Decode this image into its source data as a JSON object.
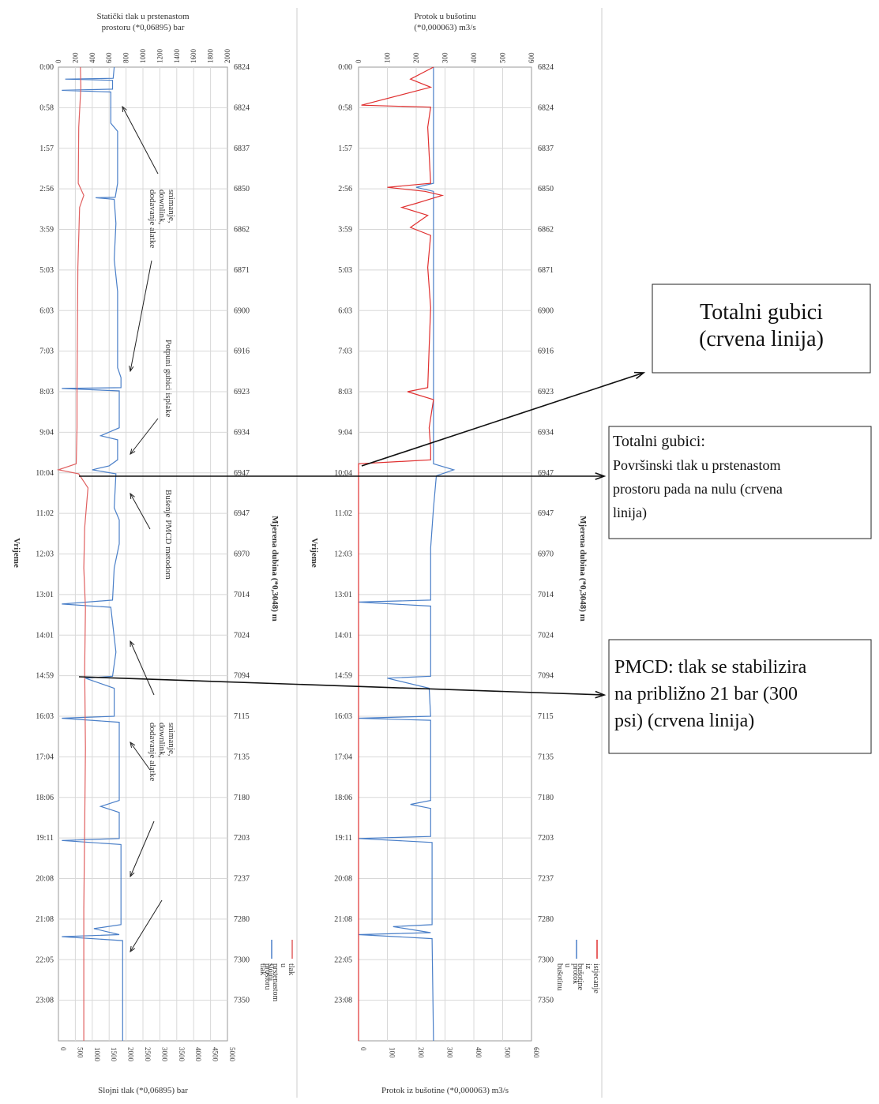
{
  "chart_data": [
    {
      "type": "line",
      "top_axis_title_lines": [
        "Statički tlak u prstenastom",
        "prostoru (*0,06895) bar"
      ],
      "top_ticks": [
        "0",
        "200",
        "400",
        "600",
        "800",
        "1000",
        "1200",
        "1400",
        "1600",
        "1800",
        "2000"
      ],
      "bottom_axis_title": "Slojni tlak (*0,06895) bar",
      "bottom_ticks": [
        "0",
        "500",
        "1000",
        "1500",
        "2000",
        "2500",
        "3000",
        "3500",
        "4000",
        "4500",
        "5000"
      ],
      "left_axis_title": "Vrijeme",
      "time_labels": [
        "0:00",
        "0:58",
        "1:57",
        "2:56",
        "3:59",
        "5:03",
        "6:03",
        "7:03",
        "8:03",
        "9:04",
        "10:04",
        "11:02",
        "12:03",
        "13:01",
        "14:01",
        "14:59",
        "16:03",
        "17:04",
        "18:06",
        "19:11",
        "20:08",
        "21:08",
        "22:05",
        "23:08"
      ],
      "right_axis_title": "Mjerena dubina (*0,3048) m",
      "depth_labels": [
        "6824",
        "6824",
        "6837",
        "6850",
        "6862",
        "6871",
        "6900",
        "6916",
        "6923",
        "6934",
        "6947",
        "6947",
        "6970",
        "7014",
        "7024",
        "7094",
        "7115",
        "7135",
        "7180",
        "7203",
        "7237",
        "7280",
        "7300",
        "7350"
      ],
      "legend": [
        "slojni tlak",
        "tlak u prstenastom prostoru"
      ],
      "annotations": [
        "snimanje, downlink, dodavanje alatke",
        "Potpuni gubici isplake",
        "Bušenje PMCD metodom",
        "snimanje, downlink, dodavanje alatke"
      ],
      "series": [
        {
          "name": "slojni tlak",
          "color": "#4a7fc8",
          "axis": "bottom",
          "points": [
            [
              0,
              1650
            ],
            [
              0.28,
              1620
            ],
            [
              0.3,
              200
            ],
            [
              0.33,
              1600
            ],
            [
              0.55,
              1600
            ],
            [
              0.58,
              100
            ],
            [
              0.62,
              1550
            ],
            [
              1.4,
              1550
            ],
            [
              1.6,
              1750
            ],
            [
              2.9,
              1750
            ],
            [
              3.25,
              1680
            ],
            [
              3.26,
              1100
            ],
            [
              3.3,
              1650
            ],
            [
              3.9,
              1700
            ],
            [
              4.8,
              1650
            ],
            [
              5.6,
              1750
            ],
            [
              7.5,
              1750
            ],
            [
              7.75,
              1850
            ],
            [
              8.0,
              1850
            ],
            [
              8.02,
              100
            ],
            [
              8.08,
              1800
            ],
            [
              9.0,
              1800
            ],
            [
              9.2,
              1250
            ],
            [
              9.3,
              1750
            ],
            [
              9.8,
              1750
            ],
            [
              9.95,
              1500
            ],
            [
              10.05,
              1000
            ],
            [
              10.15,
              1700
            ],
            [
              11.0,
              1650
            ],
            [
              11.3,
              1800
            ],
            [
              11.9,
              1800
            ],
            [
              12.5,
              1650
            ],
            [
              13.3,
              1600
            ],
            [
              13.4,
              100
            ],
            [
              13.48,
              1550
            ],
            [
              14.6,
              1700
            ],
            [
              15.2,
              1600
            ],
            [
              15.25,
              800
            ],
            [
              15.5,
              1650
            ],
            [
              16.2,
              1650
            ],
            [
              16.25,
              100
            ],
            [
              16.35,
              1800
            ],
            [
              18.3,
              1800
            ],
            [
              18.45,
              1250
            ],
            [
              18.6,
              1800
            ],
            [
              19.25,
              1800
            ],
            [
              19.3,
              100
            ],
            [
              19.4,
              1850
            ],
            [
              21.4,
              1850
            ],
            [
              21.5,
              1050
            ],
            [
              21.65,
              1800
            ],
            [
              21.7,
              100
            ],
            [
              21.8,
              1900
            ],
            [
              24.3,
              1900
            ]
          ]
        },
        {
          "name": "tlak u prstenastom prostoru",
          "color": "#e06060",
          "axis": "top",
          "points": [
            [
              0,
              260
            ],
            [
              0.5,
              265
            ],
            [
              1.5,
              240
            ],
            [
              2.9,
              235
            ],
            [
              3.2,
              300
            ],
            [
              3.5,
              250
            ],
            [
              5.0,
              230
            ],
            [
              8.0,
              220
            ],
            [
              9.0,
              220
            ],
            [
              9.9,
              210
            ],
            [
              10.05,
              0
            ],
            [
              10.15,
              240
            ],
            [
              10.5,
              350
            ],
            [
              11.5,
              310
            ],
            [
              12.5,
              300
            ],
            [
              13.5,
              320
            ],
            [
              15.0,
              310
            ],
            [
              17.0,
              320
            ],
            [
              19.0,
              310
            ],
            [
              21.0,
              300
            ],
            [
              24.3,
              300
            ]
          ]
        }
      ]
    },
    {
      "type": "line",
      "top_axis_title_lines": [
        "Protok u bušotinu",
        "(*0,000063) m3/s"
      ],
      "top_ticks": [
        "0",
        "100",
        "200",
        "300",
        "400",
        "500",
        "600"
      ],
      "bottom_axis_title": "Protok iz bušotine (*0,000063) m3/s",
      "bottom_ticks": [
        "0",
        "100",
        "200",
        "300",
        "400",
        "500",
        "600"
      ],
      "left_axis_title": "Vrijeme",
      "time_labels": [
        "0:00",
        "0:58",
        "1:57",
        "2:56",
        "3:59",
        "5:03",
        "6:03",
        "7:03",
        "8:03",
        "9:04",
        "10:04",
        "11:02",
        "12:03",
        "13:01",
        "14:01",
        "14:59",
        "16:03",
        "17:04",
        "18:06",
        "19:11",
        "20:08",
        "21:08",
        "22:05",
        "23:08"
      ],
      "right_axis_title": "Mjerena dubina (*0,3048) m",
      "depth_labels": [
        "6824",
        "6824",
        "6837",
        "6850",
        "6862",
        "6871",
        "6900",
        "6916",
        "6923",
        "6934",
        "6947",
        "6947",
        "6970",
        "7014",
        "7024",
        "7094",
        "7115",
        "7135",
        "7180",
        "7203",
        "7237",
        "7280",
        "7300",
        "7350"
      ],
      "legend": [
        "protok u bušotinu",
        "istjecanje iz bušotine"
      ],
      "series": [
        {
          "name": "protok u bušotinu",
          "color": "#4a7fc8",
          "points": [
            [
              0,
              260
            ],
            [
              2.9,
              260
            ],
            [
              3.0,
              200
            ],
            [
              3.1,
              260
            ],
            [
              9.9,
              260
            ],
            [
              10.05,
              330
            ],
            [
              10.2,
              270
            ],
            [
              11.0,
              260
            ],
            [
              11.5,
              255
            ],
            [
              12.0,
              250
            ],
            [
              13.3,
              250
            ],
            [
              13.35,
              0
            ],
            [
              13.45,
              250
            ],
            [
              15.2,
              250
            ],
            [
              15.25,
              100
            ],
            [
              15.5,
              245
            ],
            [
              16.2,
              250
            ],
            [
              16.25,
              0
            ],
            [
              16.3,
              250
            ],
            [
              18.3,
              250
            ],
            [
              18.4,
              180
            ],
            [
              18.5,
              250
            ],
            [
              19.2,
              250
            ],
            [
              19.25,
              0
            ],
            [
              19.35,
              255
            ],
            [
              21.4,
              255
            ],
            [
              21.45,
              120
            ],
            [
              21.6,
              250
            ],
            [
              21.65,
              0
            ],
            [
              21.75,
              255
            ],
            [
              24.3,
              260
            ]
          ]
        },
        {
          "name": "istjecanje iz bušotine",
          "color": "#e03030",
          "points": [
            [
              0,
              260
            ],
            [
              0.3,
              180
            ],
            [
              0.5,
              250
            ],
            [
              0.95,
              10
            ],
            [
              1.0,
              250
            ],
            [
              1.5,
              240
            ],
            [
              2.9,
              250
            ],
            [
              3.0,
              100
            ],
            [
              3.1,
              230
            ],
            [
              3.2,
              290
            ],
            [
              3.4,
              200
            ],
            [
              3.5,
              150
            ],
            [
              3.7,
              240
            ],
            [
              4.0,
              180
            ],
            [
              4.2,
              250
            ],
            [
              5.0,
              240
            ],
            [
              6.0,
              250
            ],
            [
              7.0,
              245
            ],
            [
              8.0,
              240
            ],
            [
              8.1,
              170
            ],
            [
              8.3,
              260
            ],
            [
              9.0,
              245
            ],
            [
              9.5,
              250
            ],
            [
              9.8,
              250
            ],
            [
              9.9,
              0
            ],
            [
              24.3,
              0
            ]
          ]
        }
      ]
    }
  ],
  "callouts": [
    {
      "lines": [
        "Totalni gubici",
        "(crvena linija)"
      ]
    },
    {
      "lines": [
        "Totalni gubici:",
        "Površinski tlak u prstenastom",
        "prostoru pada na nulu (crvena",
        "linija)"
      ]
    },
    {
      "lines": [
        "PMCD: tlak se stabilizira",
        "na približno 21 bar (300",
        "psi) (crvena linija)"
      ]
    }
  ]
}
